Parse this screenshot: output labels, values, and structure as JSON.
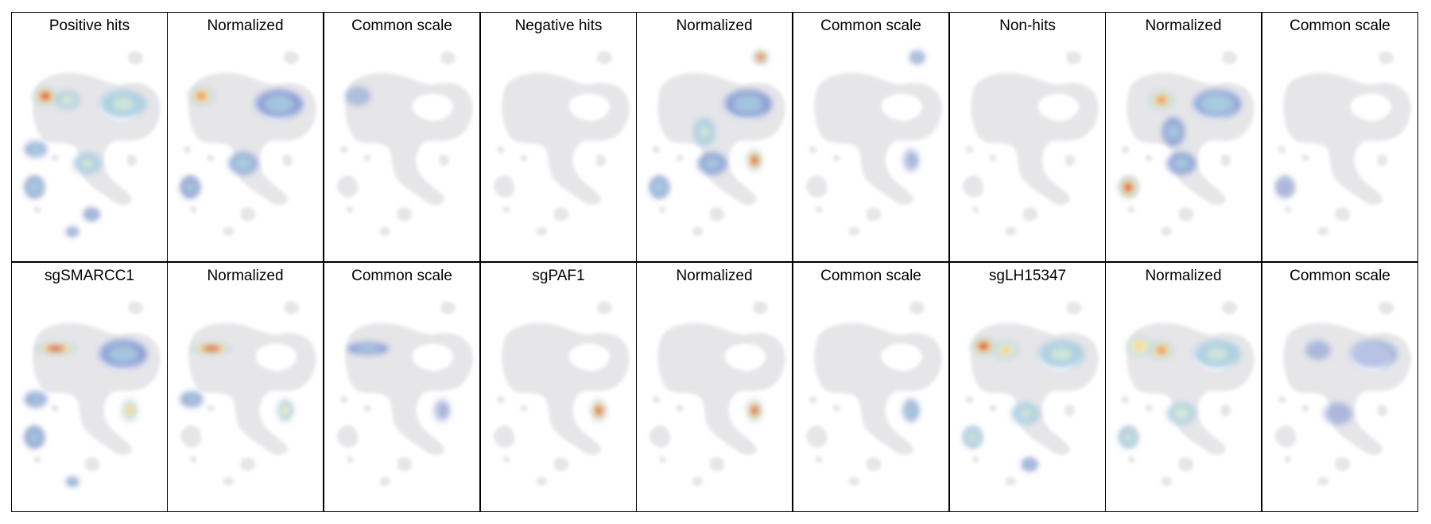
{
  "figure": {
    "colors": {
      "background_cells": "#e6e6e9",
      "density_colormap": [
        "#7b8fd0",
        "#a9cce0",
        "#d6ead9",
        "#fbf3b4",
        "#f7c46a",
        "#e76f2c",
        "#c8201a"
      ]
    }
  },
  "chart_data": {
    "type": "heatmap",
    "description_layout": "grid of 2 rows x 9 columns of UMAP density panels",
    "panels": [
      {
        "title": "Positive hits",
        "row": 0,
        "col": 0,
        "hotspots": [
          {
            "cluster": "top-left",
            "intensity": 1.0
          },
          {
            "cluster": "upper-left",
            "intensity": 0.6
          },
          {
            "cluster": "ring",
            "intensity": 0.55
          },
          {
            "cluster": "left-arm",
            "intensity": 0.45
          },
          {
            "cluster": "lower-center",
            "intensity": 0.5
          },
          {
            "cluster": "bottom-left",
            "intensity": 0.45
          },
          {
            "cluster": "bottom-mid",
            "intensity": 0.4
          },
          {
            "cluster": "bottom-small",
            "intensity": 0.35
          }
        ]
      },
      {
        "title": "Normalized",
        "row": 0,
        "col": 1,
        "hotspots": [
          {
            "cluster": "top-left",
            "intensity": 0.9
          },
          {
            "cluster": "lower-center",
            "intensity": 0.45
          },
          {
            "cluster": "bottom-left",
            "intensity": 0.4
          },
          {
            "cluster": "ring",
            "intensity": 0.3
          }
        ]
      },
      {
        "title": "Common scale",
        "row": 0,
        "col": 2,
        "hotspots": [
          {
            "cluster": "top-left",
            "intensity": 0.25
          }
        ]
      },
      {
        "title": "Negative hits",
        "row": 0,
        "col": 3,
        "hotspots": []
      },
      {
        "title": "Normalized",
        "row": 0,
        "col": 4,
        "hotspots": [
          {
            "cluster": "top-right-island",
            "intensity": 1.0
          },
          {
            "cluster": "right-blob",
            "intensity": 0.95
          },
          {
            "cluster": "mid-body",
            "intensity": 0.5
          },
          {
            "cluster": "ring",
            "intensity": 0.4
          },
          {
            "cluster": "bottom-left",
            "intensity": 0.45
          },
          {
            "cluster": "lower-center",
            "intensity": 0.35
          }
        ]
      },
      {
        "title": "Common scale",
        "row": 0,
        "col": 5,
        "hotspots": [
          {
            "cluster": "top-right-island",
            "intensity": 0.25
          },
          {
            "cluster": "right-blob",
            "intensity": 0.2
          }
        ]
      },
      {
        "title": "Non-hits",
        "row": 0,
        "col": 6,
        "hotspots": []
      },
      {
        "title": "Normalized",
        "row": 0,
        "col": 7,
        "hotspots": [
          {
            "cluster": "upper-left",
            "intensity": 0.9
          },
          {
            "cluster": "bottom-left",
            "intensity": 1.0
          },
          {
            "cluster": "ring",
            "intensity": 0.45
          },
          {
            "cluster": "lower-center",
            "intensity": 0.4
          },
          {
            "cluster": "mid-body",
            "intensity": 0.35
          }
        ]
      },
      {
        "title": "Common scale",
        "row": 0,
        "col": 8,
        "hotspots": [
          {
            "cluster": "bottom-left",
            "intensity": 0.15
          }
        ]
      },
      {
        "title": "sgSMARCC1",
        "row": 1,
        "col": 0,
        "hotspots": [
          {
            "cluster": "top-band",
            "intensity": 1.0
          },
          {
            "cluster": "right-blob",
            "intensity": 0.8
          },
          {
            "cluster": "left-arm",
            "intensity": 0.4
          },
          {
            "cluster": "bottom-left",
            "intensity": 0.4
          },
          {
            "cluster": "ring",
            "intensity": 0.3
          },
          {
            "cluster": "bottom-small",
            "intensity": 0.3
          }
        ]
      },
      {
        "title": "Normalized",
        "row": 1,
        "col": 1,
        "hotspots": [
          {
            "cluster": "top-band",
            "intensity": 1.0
          },
          {
            "cluster": "right-blob",
            "intensity": 0.7
          },
          {
            "cluster": "left-arm",
            "intensity": 0.35
          }
        ]
      },
      {
        "title": "Common scale",
        "row": 1,
        "col": 2,
        "hotspots": [
          {
            "cluster": "top-band",
            "intensity": 0.3
          },
          {
            "cluster": "right-blob",
            "intensity": 0.2
          }
        ]
      },
      {
        "title": "sgPAF1",
        "row": 1,
        "col": 3,
        "hotspots": [
          {
            "cluster": "right-blob",
            "intensity": 1.0
          }
        ]
      },
      {
        "title": "Normalized",
        "row": 1,
        "col": 4,
        "hotspots": [
          {
            "cluster": "right-blob",
            "intensity": 1.0
          }
        ]
      },
      {
        "title": "Common scale",
        "row": 1,
        "col": 5,
        "hotspots": [
          {
            "cluster": "right-blob",
            "intensity": 0.45
          }
        ]
      },
      {
        "title": "sgLH15347",
        "row": 1,
        "col": 6,
        "hotspots": [
          {
            "cluster": "top-left",
            "intensity": 1.0
          },
          {
            "cluster": "upper-left",
            "intensity": 0.8
          },
          {
            "cluster": "ring",
            "intensity": 0.55
          },
          {
            "cluster": "lower-center",
            "intensity": 0.55
          },
          {
            "cluster": "bottom-left",
            "intensity": 0.5
          },
          {
            "cluster": "bottom-mid",
            "intensity": 0.35
          }
        ]
      },
      {
        "title": "Normalized",
        "row": 1,
        "col": 7,
        "hotspots": [
          {
            "cluster": "top-left",
            "intensity": 0.85
          },
          {
            "cluster": "upper-left",
            "intensity": 0.9
          },
          {
            "cluster": "ring",
            "intensity": 0.5
          },
          {
            "cluster": "lower-center",
            "intensity": 0.6
          },
          {
            "cluster": "bottom-left",
            "intensity": 0.55
          }
        ]
      },
      {
        "title": "Common scale",
        "row": 1,
        "col": 8,
        "hotspots": [
          {
            "cluster": "upper-left",
            "intensity": 0.2
          },
          {
            "cluster": "ring",
            "intensity": 0.2
          },
          {
            "cluster": "lower-center",
            "intensity": 0.15
          }
        ]
      }
    ]
  }
}
